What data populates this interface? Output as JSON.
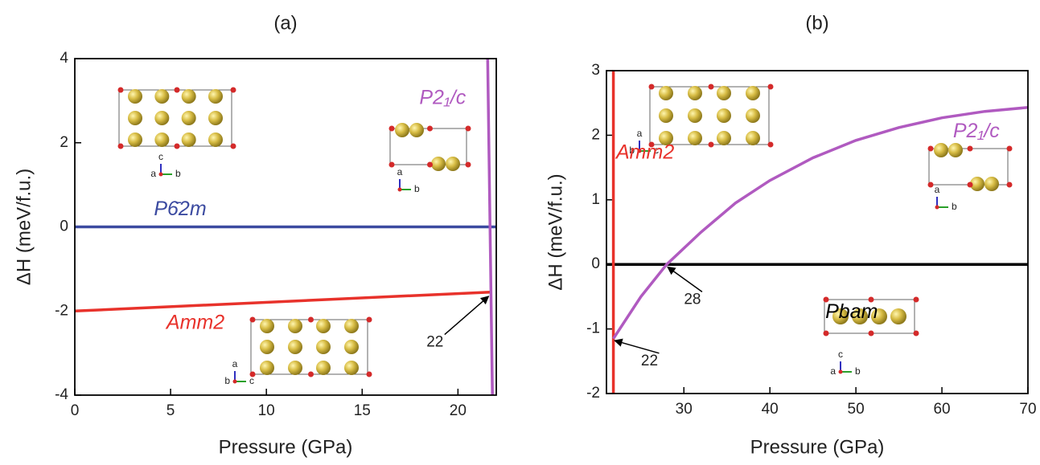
{
  "chart_data": [
    {
      "type": "line",
      "title": "(a)",
      "x_label": "Pressure (GPa)",
      "y_label": "ΔH (meV/f.u.)",
      "xlim": [
        0,
        22
      ],
      "ylim": [
        -4,
        4
      ],
      "xticks": [
        0,
        5,
        10,
        15,
        20
      ],
      "yticks": [
        -4,
        -2,
        0,
        2,
        4
      ],
      "series": [
        {
          "name": "P6̄2m",
          "color": "#3b4aa0",
          "x": [
            0,
            22
          ],
          "values": [
            0,
            0
          ]
        },
        {
          "name": "Amm2",
          "color": "#e8322b",
          "x": [
            0,
            21.7
          ],
          "values": [
            -2,
            -1.55
          ]
        },
        {
          "name": "P2₁/c",
          "color": "#b05ac0",
          "x": [
            21.55,
            21.8
          ],
          "values": [
            4,
            -4
          ]
        }
      ],
      "annotations": [
        "22"
      ],
      "insets": [
        {
          "up": "c",
          "left": "a",
          "right": "b"
        },
        {
          "up": "a",
          "right": "b"
        },
        {
          "up": "a",
          "left": "b",
          "right": "c"
        }
      ]
    },
    {
      "type": "line",
      "title": "(b)",
      "x_label": "Pressure (GPa)",
      "y_label": "ΔH (meV/f.u.)",
      "xlim": [
        21,
        70
      ],
      "ylim": [
        -2,
        3
      ],
      "xticks": [
        30,
        40,
        50,
        60,
        70
      ],
      "yticks": [
        -2,
        -1,
        0,
        1,
        2,
        3
      ],
      "series": [
        {
          "name": "Pbam",
          "color": "#000000",
          "x": [
            21,
            70
          ],
          "values": [
            0,
            0
          ]
        },
        {
          "name": "Amm2",
          "color": "#e8322b",
          "x": [
            21.8,
            21.8
          ],
          "values": [
            -2,
            3
          ]
        },
        {
          "name": "P2₁/c",
          "color": "#b05ac0",
          "x": [
            21.8,
            25,
            28,
            32,
            36,
            40,
            45,
            50,
            55,
            60,
            65,
            70
          ],
          "values": [
            -1.15,
            -0.5,
            0,
            0.5,
            0.95,
            1.3,
            1.65,
            1.92,
            2.12,
            2.27,
            2.37,
            2.43
          ]
        }
      ],
      "annotations": [
        "28",
        "22"
      ],
      "insets": [
        {
          "up": "a",
          "left": "b",
          "right": "c"
        },
        {
          "up": "a",
          "right": "b"
        },
        {
          "up": "c",
          "left": "a",
          "right": "b"
        }
      ]
    }
  ]
}
